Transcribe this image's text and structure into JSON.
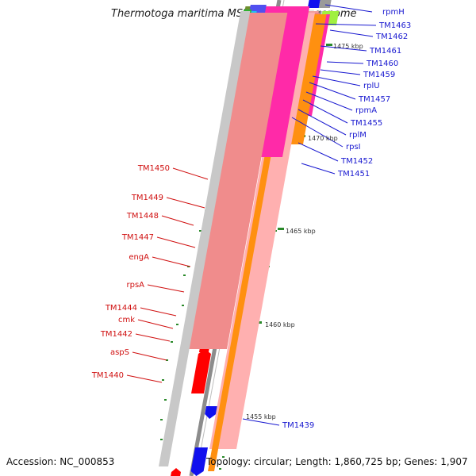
{
  "title": "Thermotoga maritima MSB8, complete genome",
  "footer": {
    "accession": "Accession: NC_000853",
    "topology": "Topology: circular; Length: 1,860,725 bp; Genes: 1,907"
  },
  "colors": {
    "forward_labels": "#1818d0",
    "reverse_labels": "#d01010",
    "backbone": "#8c8c8c",
    "ticks": "#2a8a2a"
  },
  "kbp_labels": [
    "1475 kbp",
    "1470 kbp",
    "1465 kbp",
    "1460 kbp",
    "1455 kbp"
  ],
  "forward_genes": [
    "rpmH",
    "TM1463",
    "TM1462",
    "TM1461",
    "TM1460",
    "TM1459",
    "rplU",
    "TM1457",
    "rpmA",
    "TM1455",
    "rplM",
    "rpsI",
    "TM1452",
    "TM1451",
    "TM1439"
  ],
  "reverse_genes": [
    "TM1450",
    "TM1449",
    "TM1448",
    "TM1447",
    "engA",
    "rpsA",
    "TM1444",
    "cmk",
    "TM1442",
    "aspS",
    "TM1440"
  ]
}
